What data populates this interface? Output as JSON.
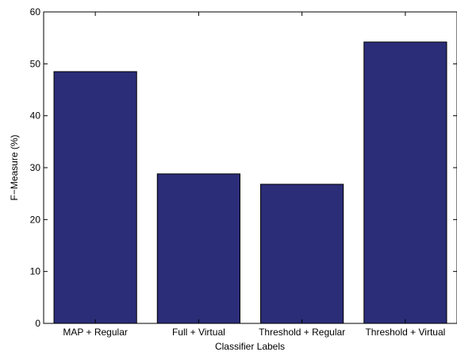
{
  "chart_data": {
    "type": "bar",
    "title": "",
    "xlabel": "Classifier Labels",
    "ylabel": "F−Measure (%)",
    "categories": [
      "MAP + Regular",
      "Full + Virtual",
      "Threshold + Regular",
      "Threshold + Virtual"
    ],
    "values": [
      48.5,
      28.8,
      26.8,
      54.2
    ],
    "ylim": [
      0,
      60
    ],
    "yticks": [
      0,
      10,
      20,
      30,
      40,
      50,
      60
    ],
    "grid": false,
    "legend": "none",
    "bar_color": "#2b2d78",
    "bar_edge_color": "#000000"
  }
}
